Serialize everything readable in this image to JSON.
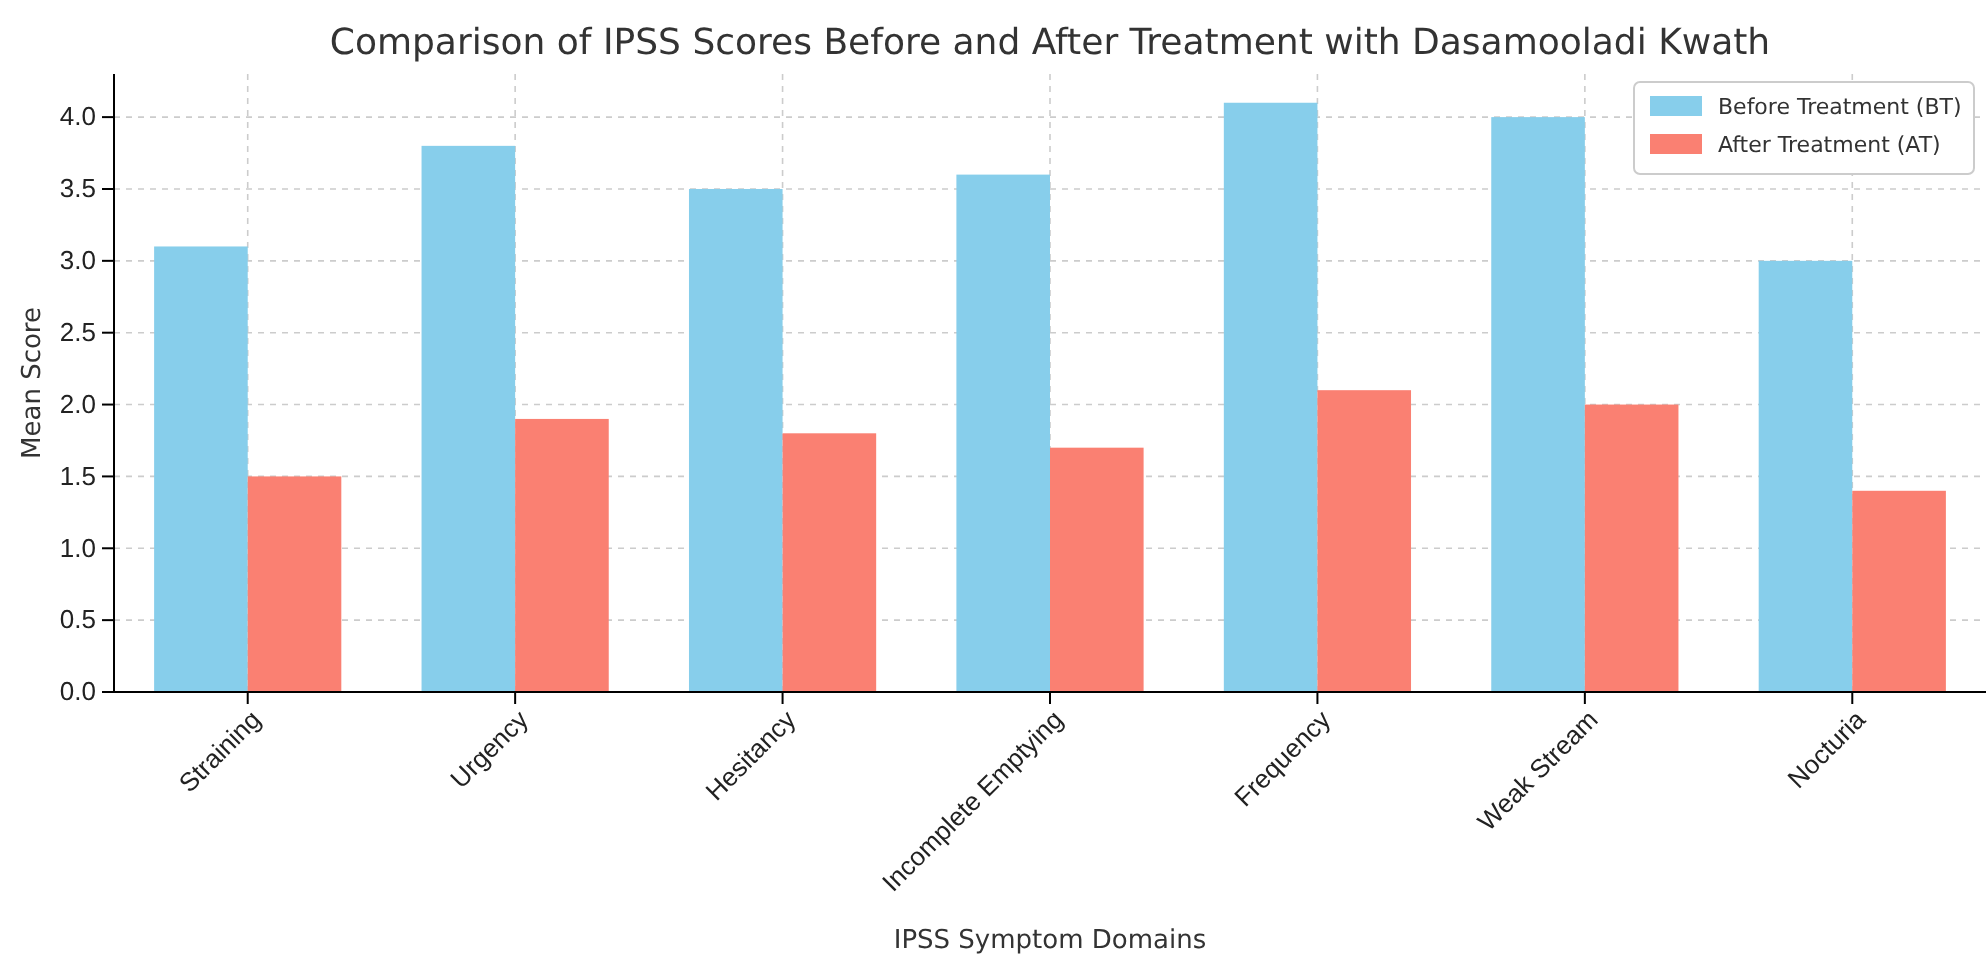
{
  "chart_data": {
    "type": "bar",
    "title": "Comparison of IPSS Scores Before and After Treatment with Dasamooladi Kwath",
    "xlabel": "IPSS Symptom Domains",
    "ylabel": "Mean Score",
    "categories": [
      "Straining",
      "Urgency",
      "Hesitancy",
      "Incomplete Emptying",
      "Frequency",
      "Weak Stream",
      "Nocturia"
    ],
    "series": [
      {
        "name": "Before Treatment (BT)",
        "color": "#87ceeb",
        "values": [
          3.1,
          3.8,
          3.5,
          3.6,
          4.1,
          4.0,
          3.0
        ]
      },
      {
        "name": "After Treatment (AT)",
        "color": "#fa8072",
        "values": [
          1.5,
          1.9,
          1.8,
          1.7,
          2.1,
          2.0,
          1.4
        ]
      }
    ],
    "ylim": [
      0,
      4.3
    ],
    "yticks": [
      {
        "value": 0,
        "label": "0.0"
      },
      {
        "value": 0.5,
        "label": "0.5"
      },
      {
        "value": 1,
        "label": "1.0"
      },
      {
        "value": 1.5,
        "label": "1.5"
      },
      {
        "value": 2,
        "label": "2.0"
      },
      {
        "value": 2.5,
        "label": "2.5"
      },
      {
        "value": 3,
        "label": "3.0"
      },
      {
        "value": 3.5,
        "label": "3.5"
      },
      {
        "value": 4,
        "label": "4.0"
      }
    ],
    "grid": true,
    "legend": "top right"
  }
}
